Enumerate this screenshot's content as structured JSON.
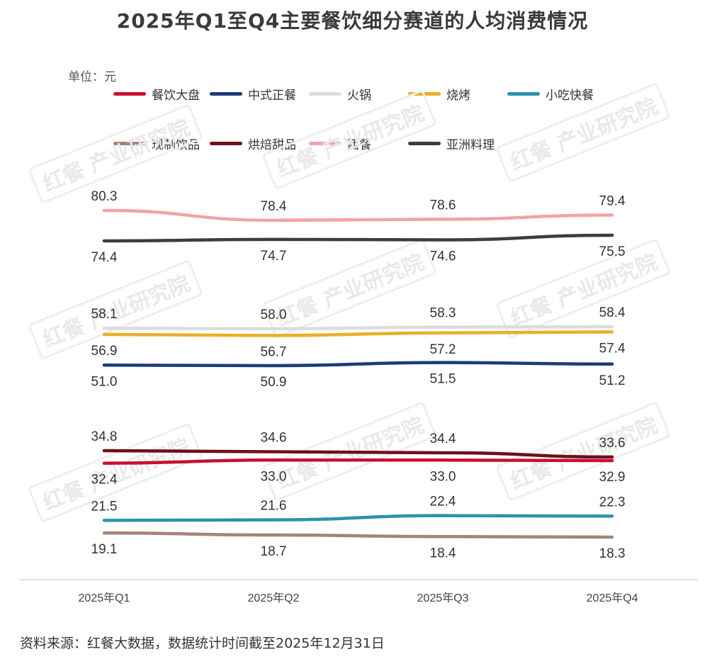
{
  "title": "2025年Q1至Q4主要餐饮细分赛道的人均消费情况",
  "unit_label": "单位：元",
  "source_note": "资料来源：红餐大数据，数据统计时间截至2025年12月31日",
  "watermark_text": "红餐 产业研究院",
  "chart_data": {
    "type": "line",
    "title": "2025年Q1至Q4主要餐饮细分赛道的人均消费情况",
    "unit": "元",
    "categories": [
      "2025年Q1",
      "2025年Q2",
      "2025年Q3",
      "2025年Q4"
    ],
    "ylim": [
      10,
      90
    ],
    "grid": false,
    "legend_position": "top",
    "series": [
      {
        "name": "餐饮大盘",
        "color": "#c8102e",
        "values": [
          32.4,
          33.0,
          33.0,
          32.9
        ],
        "label_pos": "below"
      },
      {
        "name": "中式正餐",
        "color": "#1f3a7a",
        "values": [
          51.0,
          50.9,
          51.5,
          51.2
        ],
        "label_pos": "below"
      },
      {
        "name": "火锅",
        "color": "#dcdcdc",
        "values": [
          58.1,
          58.0,
          58.3,
          58.4
        ],
        "label_pos": "above"
      },
      {
        "name": "烧烤",
        "color": "#e8b027",
        "values": [
          56.9,
          56.7,
          57.2,
          57.4
        ],
        "label_pos": "below"
      },
      {
        "name": "小吃快餐",
        "color": "#2a93ad",
        "values": [
          21.5,
          21.6,
          22.4,
          22.3
        ],
        "label_pos": "above"
      },
      {
        "name": "现制饮品",
        "color": "#a58479",
        "values": [
          19.1,
          18.7,
          18.4,
          18.3
        ],
        "label_pos": "below"
      },
      {
        "name": "烘焙甜品",
        "color": "#6e0f1a",
        "values": [
          34.8,
          34.6,
          34.4,
          33.6
        ],
        "label_pos": "above"
      },
      {
        "name": "西餐",
        "color": "#f0a3a8",
        "values": [
          80.3,
          78.4,
          78.6,
          79.4
        ],
        "label_pos": "above"
      },
      {
        "name": "亚洲料理",
        "color": "#3d3d3d",
        "values": [
          74.4,
          74.7,
          74.6,
          75.5
        ],
        "label_pos": "below"
      }
    ]
  }
}
